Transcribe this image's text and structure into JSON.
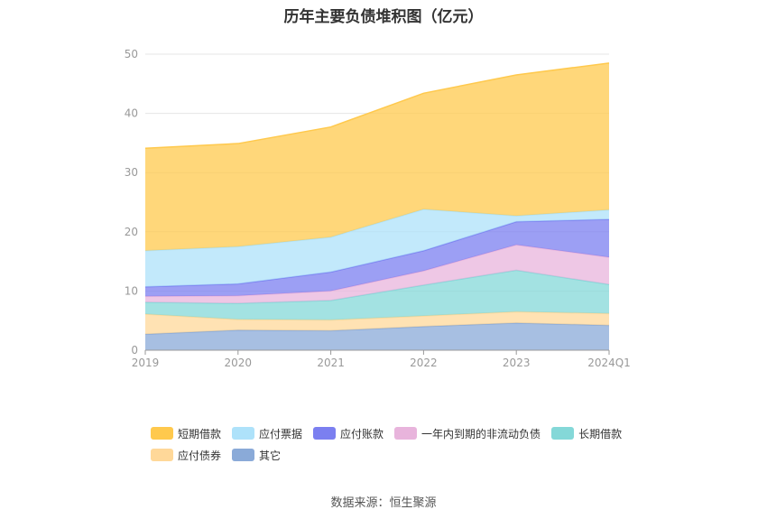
{
  "title": "历年主要负债堆积图（亿元）",
  "source": "数据来源：恒生聚源",
  "chart_data": {
    "type": "area",
    "stacked": true,
    "title": "历年主要负债堆积图（亿元）",
    "categories": [
      "2019",
      "2020",
      "2021",
      "2022",
      "2023",
      "2024Q1"
    ],
    "ylim": [
      0,
      50
    ],
    "yticks": [
      0,
      10,
      20,
      30,
      40,
      50
    ],
    "grid": true,
    "legend_position": "bottom",
    "series": [
      {
        "name": "其它",
        "color": "#8aaad8",
        "values": [
          2.7,
          3.4,
          3.3,
          4.0,
          4.6,
          4.2
        ]
      },
      {
        "name": "应付债券",
        "color": "#ffd899",
        "values": [
          3.4,
          1.8,
          1.8,
          1.8,
          1.9,
          2.0
        ]
      },
      {
        "name": "长期借款",
        "color": "#84d8d8",
        "values": [
          2.0,
          2.7,
          3.3,
          5.2,
          7.0,
          4.9
        ]
      },
      {
        "name": "一年内到期的非流动负债",
        "color": "#e8b4dc",
        "values": [
          1.0,
          1.3,
          1.6,
          2.4,
          4.3,
          4.6
        ]
      },
      {
        "name": "应付账款",
        "color": "#7b7ff0",
        "values": [
          1.6,
          2.0,
          3.2,
          3.4,
          3.9,
          6.4
        ]
      },
      {
        "name": "应付票据",
        "color": "#aee2fa",
        "values": [
          6.1,
          6.3,
          5.9,
          7.0,
          1.0,
          1.6
        ]
      },
      {
        "name": "短期借款",
        "color": "#ffc94d",
        "values": [
          17.3,
          17.4,
          18.6,
          19.6,
          23.8,
          24.8
        ]
      }
    ],
    "legend_order": [
      "短期借款",
      "应付票据",
      "应付账款",
      "一年内到期的非流动负债",
      "长期借款",
      "应付债券",
      "其它"
    ]
  }
}
